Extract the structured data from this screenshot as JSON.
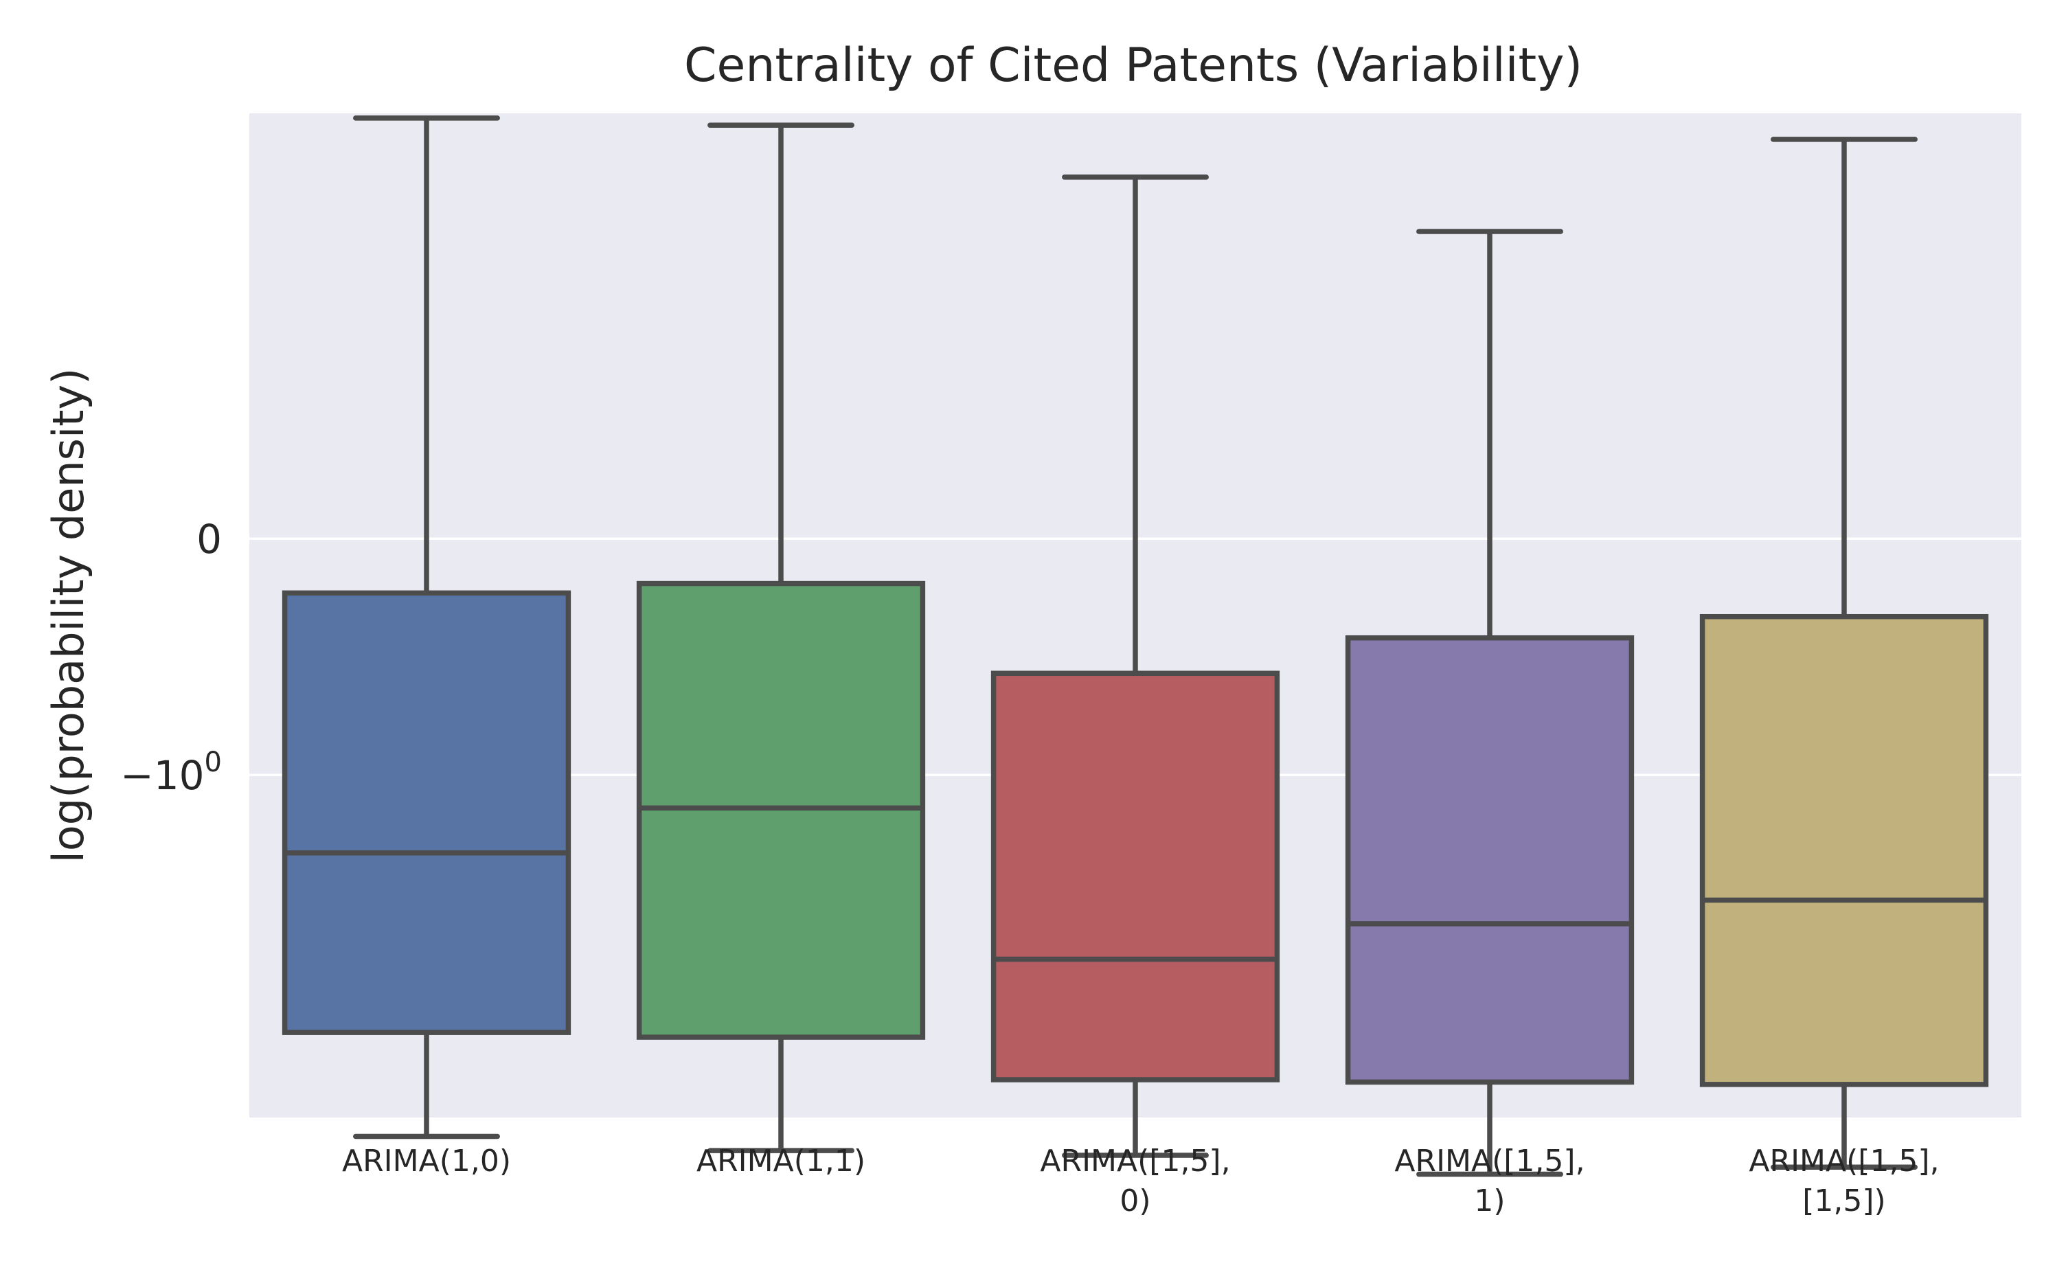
{
  "chart_data": {
    "type": "box",
    "title": "Centrality of Cited Patents (Variability)",
    "xlabel": "",
    "ylabel": "log(probability density)",
    "y_scale": "symlog",
    "yticks": [
      {
        "label": "0",
        "value": 0
      },
      {
        "label": "−10",
        "sup": "0",
        "value": -1
      }
    ],
    "ylim": [
      -2.45,
      1.8
    ],
    "grid": true,
    "background": "#EAEAF2",
    "edge_color": "#4C4C4C",
    "categories": [
      {
        "label_lines": [
          "ARIMA(1,0)"
        ],
        "color": "#5874A4",
        "whisker_low": -2.53,
        "q1": -2.09,
        "median": -1.33,
        "q3": -0.23,
        "whisker_high": 1.78
      },
      {
        "label_lines": [
          "ARIMA(1,1)"
        ],
        "color": "#5F9F6E",
        "whisker_low": -2.59,
        "q1": -2.11,
        "median": -1.14,
        "q3": -0.19,
        "whisker_high": 1.75
      },
      {
        "label_lines": [
          "ARIMA([1,5],",
          "0)"
        ],
        "color": "#B55D60",
        "whisker_low": -2.61,
        "q1": -2.29,
        "median": -1.78,
        "q3": -0.57,
        "whisker_high": 1.53
      },
      {
        "label_lines": [
          "ARIMA([1,5],",
          "1)"
        ],
        "color": "#857AAB",
        "whisker_low": -2.69,
        "q1": -2.3,
        "median": -1.63,
        "q3": -0.42,
        "whisker_high": 1.3
      },
      {
        "label_lines": [
          "ARIMA([1,5],",
          "[1,5])"
        ],
        "color": "#C0B17D",
        "whisker_low": -2.66,
        "q1": -2.31,
        "median": -1.53,
        "q3": -0.33,
        "whisker_high": 1.69
      }
    ]
  }
}
